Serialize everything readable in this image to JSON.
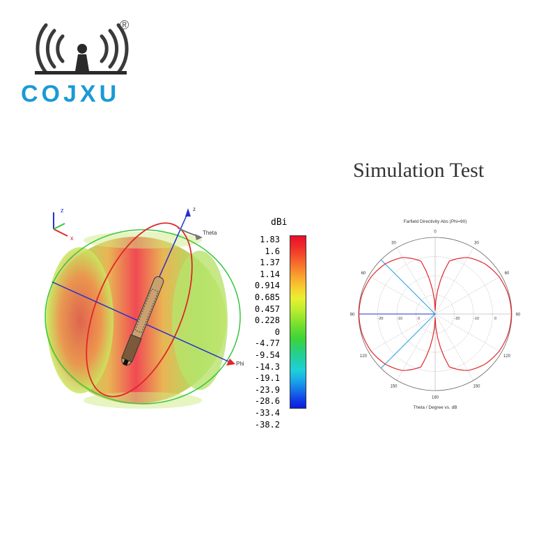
{
  "brand": {
    "name": "COJXU",
    "registered_mark": "®",
    "color": "#1a9ad6"
  },
  "heading": "Simulation Test",
  "pattern3d": {
    "axis_labels": [
      "z",
      "x",
      "Theta",
      "z",
      "Phi"
    ]
  },
  "colorscale": {
    "unit": "dBi",
    "ticks": [
      "1.83",
      "1.6",
      "1.37",
      "1.14",
      "0.914",
      "0.685",
      "0.457",
      "0.228",
      "0",
      "-4.77",
      "-9.54",
      "-14.3",
      "-19.1",
      "-23.9",
      "-28.6",
      "-33.4",
      "-38.2"
    ]
  },
  "chart_data": {
    "type": "polar",
    "title": "Farfield Directivity Abs (Phi=90)",
    "xlabel": "Theta / Degree vs. dB",
    "angle_ticks": [
      "0",
      "30",
      "60",
      "90",
      "120",
      "150",
      "180",
      "150",
      "120",
      "90",
      "60",
      "30"
    ],
    "radial_ticks": [
      "0",
      "-10",
      "-20",
      "-20",
      "-10",
      "0"
    ],
    "series": [
      {
        "type": "line",
        "color": "#e0262a",
        "pattern": "dipole figure-eight",
        "theta_deg": [
          0,
          15,
          30,
          45,
          60,
          75,
          90,
          105,
          120,
          135,
          150,
          165,
          180
        ],
        "directivity_dbi": [
          -38.2,
          -10.0,
          -4.2,
          -1.2,
          0.6,
          1.5,
          1.83,
          1.5,
          0.6,
          -1.2,
          -4.2,
          -10.0,
          -38.2
        ]
      }
    ],
    "markers": [
      {
        "label": "main lobe direction",
        "theta_deg": 90,
        "color": "#2230d0"
      },
      {
        "label": "3 dB beamwidth",
        "theta_deg": [
          45,
          135
        ],
        "color": "#19a1e0"
      }
    ]
  }
}
